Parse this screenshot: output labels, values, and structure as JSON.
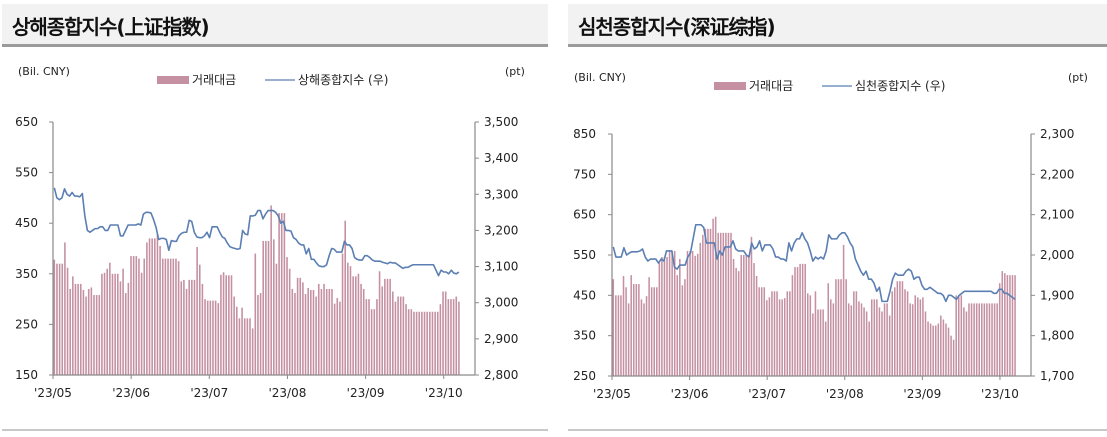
{
  "colors": {
    "bar": "#c591a2",
    "line": "#5b7fb3",
    "axis": "#8a8a8a",
    "title_bg": "#f2f2f2",
    "title_rule": "#9b9b9b"
  },
  "chart_data": [
    {
      "type": "bar+line",
      "title": "상해종합지수(上证指数)",
      "left_unit": "(Bil. CNY)",
      "right_unit": "(pt)",
      "legend": [
        {
          "name": "거래대금",
          "kind": "bar"
        },
        {
          "name": "상해종합지수 (우)",
          "kind": "line"
        }
      ],
      "x_tick_labels": [
        "'23/05",
        "'23/06",
        "'23/07",
        "'23/08",
        "'23/09",
        "'23/10"
      ],
      "y_left": {
        "min": 150,
        "max": 650,
        "ticks": [
          "650",
          "550",
          "450",
          "350",
          "250",
          "150"
        ]
      },
      "y_right": {
        "min": 2800,
        "max": 3500,
        "ticks": [
          "3,500",
          "3,400",
          "3,300",
          "3,200",
          "3,100",
          "3,000",
          "2,900",
          "2,800"
        ]
      },
      "series": [
        {
          "name": "거래대금",
          "axis": "left",
          "kind": "bar",
          "values": [
            378,
            370,
            370,
            370,
            412,
            362,
            320,
            345,
            330,
            330,
            330,
            318,
            305,
            320,
            323,
            308,
            308,
            308,
            350,
            352,
            360,
            372,
            350,
            350,
            350,
            335,
            360,
            312,
            332,
            385,
            385,
            385,
            380,
            352,
            380,
            412,
            420,
            420,
            420,
            428,
            405,
            380,
            380,
            380,
            380,
            380,
            380,
            375,
            335,
            338,
            320,
            338,
            338,
            338,
            403,
            368,
            330,
            300,
            297,
            297,
            297,
            297,
            292,
            348,
            353,
            347,
            347,
            347,
            305,
            285,
            262,
            283,
            262,
            262,
            262,
            242,
            390,
            308,
            312,
            415,
            415,
            415,
            485,
            418,
            370,
            470,
            470,
            470,
            383,
            360,
            320,
            312,
            342,
            342,
            333,
            310,
            322,
            318,
            318,
            305,
            330,
            320,
            330,
            320,
            320,
            320,
            291,
            302,
            295,
            390,
            455,
            372,
            365,
            345,
            345,
            350,
            330,
            320,
            300,
            300,
            280,
            280,
            300,
            355,
            325,
            340,
            340,
            340,
            315,
            295,
            305,
            305,
            305,
            290,
            280,
            280,
            275,
            275,
            275,
            275,
            275,
            275,
            275,
            275,
            275,
            275,
            290,
            315,
            315,
            300,
            300,
            300,
            305,
            295
          ]
        },
        {
          "name": "상해종합지수 (우)",
          "axis": "right",
          "kind": "line",
          "values": [
            3318,
            3290,
            3285,
            3290,
            3315,
            3300,
            3295,
            3305,
            3295,
            3295,
            3293,
            3302,
            3240,
            3200,
            3195,
            3200,
            3205,
            3205,
            3210,
            3210,
            3200,
            3200,
            3215,
            3215,
            3215,
            3215,
            3185,
            3185,
            3200,
            3215,
            3215,
            3215,
            3215,
            3218,
            3215,
            3245,
            3250,
            3250,
            3248,
            3230,
            3208,
            3175,
            3178,
            3178,
            3175,
            3145,
            3172,
            3170,
            3170,
            3185,
            3192,
            3195,
            3195,
            3228,
            3225,
            3195,
            3182,
            3180,
            3180,
            3185,
            3195,
            3180,
            3210,
            3210,
            3210,
            3195,
            3182,
            3178,
            3165,
            3155,
            3152,
            3150,
            3148,
            3150,
            3200,
            3190,
            3188,
            3240,
            3240,
            3242,
            3255,
            3255,
            3232,
            3245,
            3255,
            3255,
            3255,
            3250,
            3240,
            3220,
            3225,
            3200,
            3200,
            3198,
            3180,
            3175,
            3165,
            3160,
            3160,
            3135,
            3150,
            3120,
            3120,
            3110,
            3102,
            3100,
            3100,
            3105,
            3130,
            3150,
            3148,
            3140,
            3140,
            3140,
            3170,
            3160,
            3160,
            3150,
            3125,
            3120,
            3118,
            3118,
            3130,
            3130,
            3125,
            3118,
            3115,
            3115,
            3115,
            3112,
            3110,
            3108,
            3112,
            3110,
            3110,
            3105,
            3100,
            3095,
            3098,
            3098,
            3102,
            3105,
            3105,
            3105,
            3105,
            3105,
            3105,
            3105,
            3105,
            3105,
            3090,
            3075,
            3090,
            3085,
            3085,
            3080,
            3090,
            3082,
            3080,
            3085
          ]
        }
      ]
    },
    {
      "type": "bar+line",
      "title": "심천종합지수(深证综指)",
      "left_unit": "(Bil. CNY)",
      "right_unit": "(pt)",
      "legend": [
        {
          "name": "거래대금",
          "kind": "bar"
        },
        {
          "name": "심천종합지수 (우)",
          "kind": "line"
        }
      ],
      "x_tick_labels": [
        "'23/05",
        "'23/06",
        "'23/07",
        "'23/08",
        "'23/09",
        "'23/10"
      ],
      "y_left": {
        "min": 250,
        "max": 850,
        "ticks": [
          "850",
          "750",
          "650",
          "550",
          "450",
          "350",
          "250"
        ]
      },
      "y_right": {
        "min": 1700,
        "max": 2300,
        "ticks": [
          "2,300",
          "2,200",
          "2,100",
          "2,000",
          "1,900",
          "1,800",
          "1,700"
        ]
      },
      "series": [
        {
          "name": "거래대금",
          "axis": "left",
          "kind": "bar",
          "values": [
            490,
            450,
            450,
            450,
            498,
            470,
            430,
            500,
            478,
            478,
            478,
            440,
            430,
            448,
            495,
            470,
            470,
            470,
            530,
            545,
            545,
            545,
            560,
            560,
            560,
            500,
            540,
            475,
            490,
            560,
            560,
            560,
            548,
            553,
            580,
            600,
            615,
            615,
            615,
            640,
            645,
            605,
            605,
            605,
            605,
            605,
            605,
            540,
            518,
            510,
            550,
            550,
            550,
            550,
            595,
            530,
            498,
            470,
            470,
            470,
            438,
            445,
            460,
            460,
            460,
            440,
            440,
            443,
            460,
            460,
            500,
            520,
            520,
            528,
            528,
            528,
            455,
            450,
            405,
            460,
            415,
            415,
            415,
            385,
            480,
            440,
            430,
            490,
            490,
            490,
            575,
            490,
            430,
            425,
            460,
            460,
            435,
            430,
            420,
            410,
            385,
            440,
            440,
            440,
            420,
            410,
            430,
            430,
            400,
            460,
            470,
            485,
            485,
            485,
            465,
            460,
            430,
            428,
            450,
            445,
            440,
            445,
            410,
            385,
            380,
            375,
            375,
            380,
            400,
            390,
            380,
            370,
            350,
            340,
            450,
            450,
            450,
            420,
            410,
            430,
            430,
            430,
            430,
            430,
            430,
            430,
            430,
            430,
            430,
            430,
            430,
            480,
            510,
            505,
            500,
            500,
            500,
            500
          ]
        },
        {
          "name": "심천종합지수 (우)",
          "axis": "right",
          "kind": "line",
          "values": [
            2020,
            1995,
            1995,
            1995,
            2018,
            2000,
            2005,
            2008,
            2008,
            2008,
            2010,
            2015,
            1995,
            1985,
            1990,
            1990,
            1990,
            1980,
            1990,
            1985,
            2010,
            2010,
            2010,
            1970,
            1965,
            1975,
            1975,
            1975,
            1995,
            2005,
            2040,
            2075,
            2075,
            2075,
            2068,
            2030,
            2030,
            2030,
            2030,
            1990,
            2010,
            2000,
            2020,
            2020,
            2020,
            2035,
            2015,
            2010,
            2010,
            2010,
            2000,
            1995,
            2030,
            2015,
            2020,
            2035,
            2010,
            2025,
            2025,
            2025,
            2015,
            1995,
            1995,
            1990,
            1990,
            1985,
            2030,
            2010,
            2030,
            2040,
            2040,
            2055,
            2040,
            2030,
            2010,
            1985,
            1995,
            1990,
            1995,
            1990,
            2010,
            2050,
            2040,
            2040,
            2040,
            2050,
            2055,
            2055,
            2045,
            2030,
            2020,
            1990,
            1975,
            1960,
            1950,
            1960,
            1940,
            1940,
            1930,
            1910,
            1920,
            1885,
            1885,
            1885,
            1910,
            1940,
            1955,
            1950,
            1950,
            1950,
            1960,
            1965,
            1960,
            1940,
            1945,
            1945,
            1925,
            1915,
            1915,
            1920,
            1915,
            1910,
            1905,
            1905,
            1900,
            1885,
            1900,
            1900,
            1895,
            1890,
            1900,
            1905,
            1910,
            1910,
            1910,
            1910,
            1910,
            1910,
            1910,
            1910,
            1910,
            1910,
            1910,
            1905,
            1905,
            1915,
            1915,
            1905,
            1905,
            1900,
            1895,
            1890
          ]
        }
      ]
    }
  ],
  "panels": [
    {
      "title": "상해종합지수(上证指数)"
    },
    {
      "title": "심천종합지수(深证综指)"
    }
  ]
}
